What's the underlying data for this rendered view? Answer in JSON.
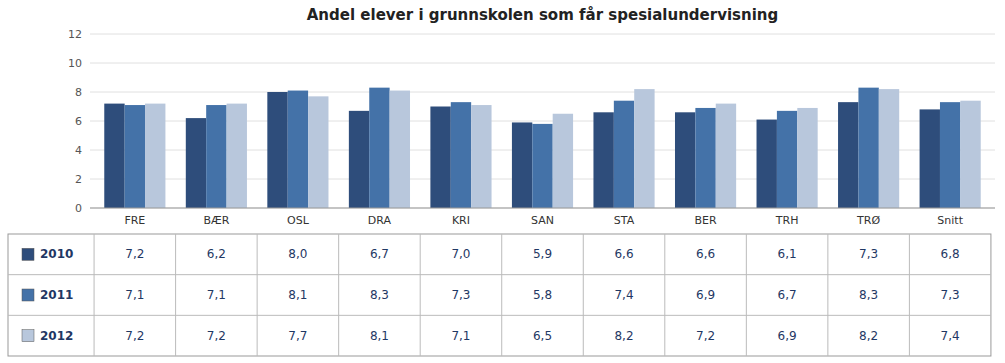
{
  "chart_data": {
    "type": "bar",
    "title": "Andel elever i grunnskolen som får spesialundervisning",
    "categories": [
      "FRE",
      "BÆR",
      "OSL",
      "DRA",
      "KRI",
      "SAN",
      "STA",
      "BER",
      "TRH",
      "TRØ",
      "Snitt"
    ],
    "series": [
      {
        "name": "2010",
        "color": "#2E4D7B",
        "values": [
          7.2,
          6.2,
          8.0,
          6.7,
          7.0,
          5.9,
          6.6,
          6.6,
          6.1,
          7.3,
          6.8
        ],
        "value_labels": [
          "7,2",
          "6,2",
          "8,0",
          "6,7",
          "7,0",
          "5,9",
          "6,6",
          "6,6",
          "6,1",
          "7,3",
          "6,8"
        ]
      },
      {
        "name": "2011",
        "color": "#4472A8",
        "values": [
          7.1,
          7.1,
          8.1,
          8.3,
          7.3,
          5.8,
          7.4,
          6.9,
          6.7,
          8.3,
          7.3
        ],
        "value_labels": [
          "7,1",
          "7,1",
          "8,1",
          "8,3",
          "7,3",
          "5,8",
          "7,4",
          "6,9",
          "6,7",
          "8,3",
          "7,3"
        ]
      },
      {
        "name": "2012",
        "color": "#B8C7DC",
        "values": [
          7.2,
          7.2,
          7.7,
          8.1,
          7.1,
          6.5,
          8.2,
          7.2,
          6.9,
          8.2,
          7.4
        ],
        "value_labels": [
          "7,2",
          "7,2",
          "7,7",
          "8,1",
          "7,1",
          "6,5",
          "8,2",
          "7,2",
          "6,9",
          "8,2",
          "7,4"
        ]
      }
    ],
    "ylim": [
      0,
      12
    ],
    "yticks": [
      0,
      2,
      4,
      6,
      8,
      10,
      12
    ],
    "grid": true
  }
}
